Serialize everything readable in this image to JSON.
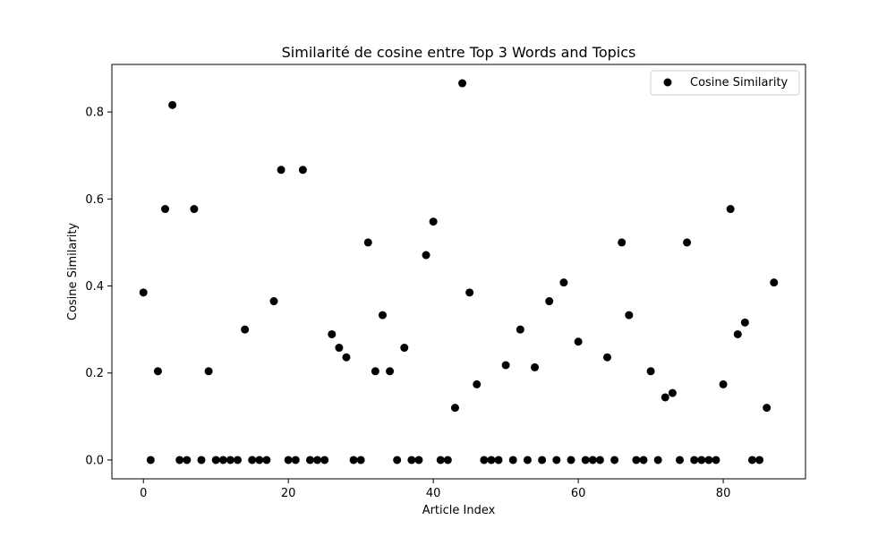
{
  "chart_data": {
    "type": "scatter",
    "title": "Similarité de cosine entre Top 3 Words and Topics",
    "xlabel": "Article Index",
    "ylabel": "Cosine Similarity",
    "xlim": [
      -4.35,
      91.35
    ],
    "ylim": [
      -0.0433,
      0.9093
    ],
    "xticks": [
      0,
      20,
      40,
      60,
      80
    ],
    "yticks": [
      0.0,
      0.2,
      0.4,
      0.6,
      0.8
    ],
    "ytick_labels": [
      "0.0",
      "0.2",
      "0.4",
      "0.6",
      "0.8"
    ],
    "grid": false,
    "legend": {
      "position": "top-right"
    },
    "series": [
      {
        "name": "Cosine Similarity",
        "color": "#000000",
        "marker": "circle",
        "x": [
          0,
          1,
          2,
          3,
          4,
          5,
          6,
          7,
          8,
          9,
          10,
          11,
          12,
          13,
          14,
          15,
          16,
          17,
          18,
          19,
          20,
          21,
          22,
          23,
          24,
          25,
          26,
          27,
          28,
          29,
          30,
          31,
          32,
          33,
          34,
          35,
          36,
          37,
          38,
          39,
          40,
          41,
          42,
          43,
          44,
          45,
          46,
          47,
          48,
          49,
          50,
          51,
          52,
          53,
          54,
          55,
          56,
          57,
          58,
          59,
          60,
          61,
          62,
          63,
          64,
          65,
          66,
          67,
          68,
          69,
          70,
          71,
          72,
          73,
          74,
          75,
          76,
          77,
          78,
          79,
          80,
          81,
          82,
          83,
          84,
          85,
          86,
          87
        ],
        "y": [
          0.385,
          0,
          0.204,
          0.577,
          0.816,
          0,
          0,
          0.577,
          0,
          0.204,
          0,
          0,
          0,
          0,
          0.3,
          0,
          0,
          0,
          0.365,
          0.667,
          0,
          0,
          0.667,
          0,
          0,
          0,
          0.289,
          0.258,
          0.236,
          0,
          0,
          0.5,
          0.204,
          0.333,
          0.204,
          0,
          0.258,
          0,
          0,
          0.471,
          0.548,
          0,
          0,
          0.12,
          0.866,
          0.385,
          0.174,
          0,
          0,
          0,
          0.218,
          0,
          0.3,
          0,
          0.213,
          0,
          0.365,
          0,
          0.408,
          0,
          0.272,
          0,
          0,
          0,
          0.236,
          0,
          0.5,
          0.333,
          0,
          0,
          0.204,
          0,
          0.144,
          0.154,
          0,
          0.5,
          0,
          0,
          0,
          0,
          0.174,
          0.577,
          0.289,
          0.316,
          0,
          0,
          0.12,
          0.408
        ]
      }
    ]
  }
}
